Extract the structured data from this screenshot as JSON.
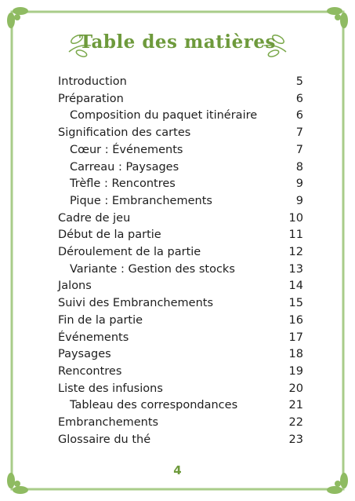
{
  "title": "Table des matières",
  "entries": [
    {
      "label": "Introduction",
      "page": 5,
      "level": 1
    },
    {
      "label": "Préparation",
      "page": 6,
      "level": 1
    },
    {
      "label": "Composition du paquet itinéraire",
      "page": 6,
      "level": 2
    },
    {
      "label": "Signification des cartes",
      "page": 7,
      "level": 1
    },
    {
      "label": "Cœur : Événements",
      "page": 7,
      "level": 2
    },
    {
      "label": "Carreau : Paysages",
      "page": 8,
      "level": 2
    },
    {
      "label": "Trèfle : Rencontres",
      "page": 9,
      "level": 2
    },
    {
      "label": "Pique : Embranchements",
      "page": 9,
      "level": 2
    },
    {
      "label": "Cadre de jeu",
      "page": 10,
      "level": 1
    },
    {
      "label": "Début de la partie",
      "page": 11,
      "level": 1
    },
    {
      "label": "Déroulement de la partie",
      "page": 12,
      "level": 1
    },
    {
      "label": "Variante : Gestion des stocks",
      "page": 13,
      "level": 2
    },
    {
      "label": "Jalons",
      "page": 14,
      "level": 1
    },
    {
      "label": "Suivi des Embranchements",
      "page": 15,
      "level": 1
    },
    {
      "label": "Fin de la partie",
      "page": 16,
      "level": 1
    },
    {
      "label": "Événements",
      "page": 17,
      "level": 1
    },
    {
      "label": "Paysages",
      "page": 18,
      "level": 1
    },
    {
      "label": "Rencontres",
      "page": 19,
      "level": 1
    },
    {
      "label": "Liste des infusions",
      "page": 20,
      "level": 1
    },
    {
      "label": "Tableau des correspondances",
      "page": 21,
      "level": 2
    },
    {
      "label": "Embranchements",
      "page": 22,
      "level": 1
    },
    {
      "label": "Glossaire du thé",
      "page": 23,
      "level": 1
    }
  ],
  "page_number": 4
}
